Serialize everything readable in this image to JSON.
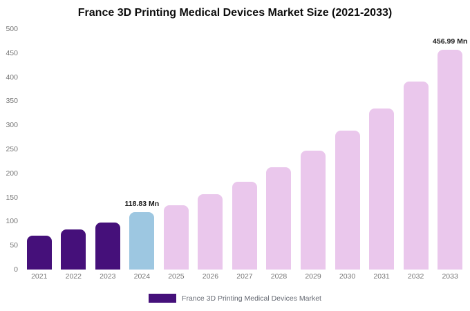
{
  "title": "France 3D Printing Medical Devices Market Size (2021-2033)",
  "legend": {
    "label": "France 3D Printing Medical Devices Market",
    "swatch_color": "#45107a"
  },
  "chart_data": {
    "type": "bar",
    "title": "France 3D Printing Medical Devices Market Size (2021-2033)",
    "xlabel": "",
    "ylabel": "",
    "ylim": [
      0,
      500
    ],
    "yticks": [
      0,
      50,
      100,
      150,
      200,
      250,
      300,
      350,
      400,
      450,
      500
    ],
    "grid": false,
    "legend_position": "bottom",
    "categories": [
      "2021",
      "2022",
      "2023",
      "2024",
      "2025",
      "2026",
      "2027",
      "2028",
      "2029",
      "2030",
      "2031",
      "2032",
      "2033"
    ],
    "values": [
      70,
      83,
      98,
      118.83,
      134,
      156,
      182,
      212,
      247,
      289,
      335,
      391,
      456.99
    ],
    "bar_roles": [
      "historical",
      "historical",
      "historical",
      "highlight",
      "forecast",
      "forecast",
      "forecast",
      "forecast",
      "forecast",
      "forecast",
      "forecast",
      "forecast",
      "forecast"
    ],
    "colors": {
      "historical": "#45107a",
      "highlight": "#9dc7e1",
      "forecast": "#eac7ec"
    },
    "annotations": [
      {
        "index": 3,
        "text": "118.83 Mn"
      },
      {
        "index": 12,
        "text": "456.99 Mn"
      }
    ]
  }
}
